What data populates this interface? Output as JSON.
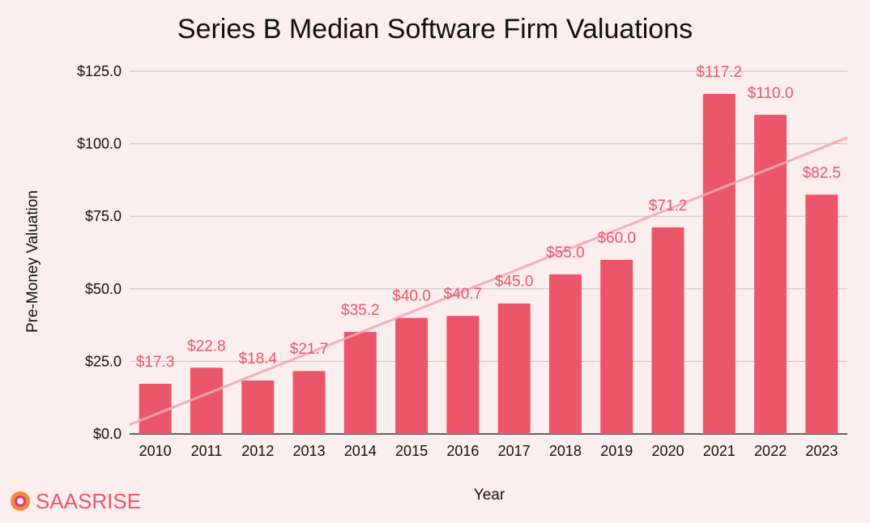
{
  "colors": {
    "background": "#fbeeee",
    "bar": "#ec566b",
    "label": "#ec566b",
    "trendline": "#f2a9b3",
    "gridline": "#c8c0c0",
    "brand_logo_outer": "#f08a3c",
    "brand_logo_inner": "#d93a7a"
  },
  "brand": {
    "name": "SAASRISE",
    "icon": "saasrise-logo-icon"
  },
  "chart_data": {
    "type": "bar",
    "title": "Series B Median Software Firm Valuations",
    "xlabel": "Year",
    "ylabel": "Pre-Money Valuation",
    "categories": [
      "2010",
      "2011",
      "2012",
      "2013",
      "2014",
      "2015",
      "2016",
      "2017",
      "2018",
      "2019",
      "2020",
      "2021",
      "2022",
      "2023"
    ],
    "values": [
      17.3,
      22.8,
      18.4,
      21.7,
      35.2,
      40.0,
      40.7,
      45.0,
      55.0,
      60.0,
      71.2,
      117.2,
      110.0,
      82.5
    ],
    "data_labels": [
      "$17.3",
      "$22.8",
      "$18.4",
      "$21.7",
      "$35.2",
      "$40.0",
      "$40.7",
      "$45.0",
      "$55.0",
      "$60.0",
      "$71.2",
      "$117.2",
      "$110.0",
      "$82.5"
    ],
    "ylim": [
      0,
      125
    ],
    "yticks": [
      0,
      25,
      50,
      75,
      100,
      125
    ],
    "ytick_labels": [
      "$0.0",
      "$25.0",
      "$50.0",
      "$75.0",
      "$100.0",
      "$125.0"
    ],
    "grid": true,
    "legend": "none",
    "trendline": {
      "type": "linear"
    }
  }
}
